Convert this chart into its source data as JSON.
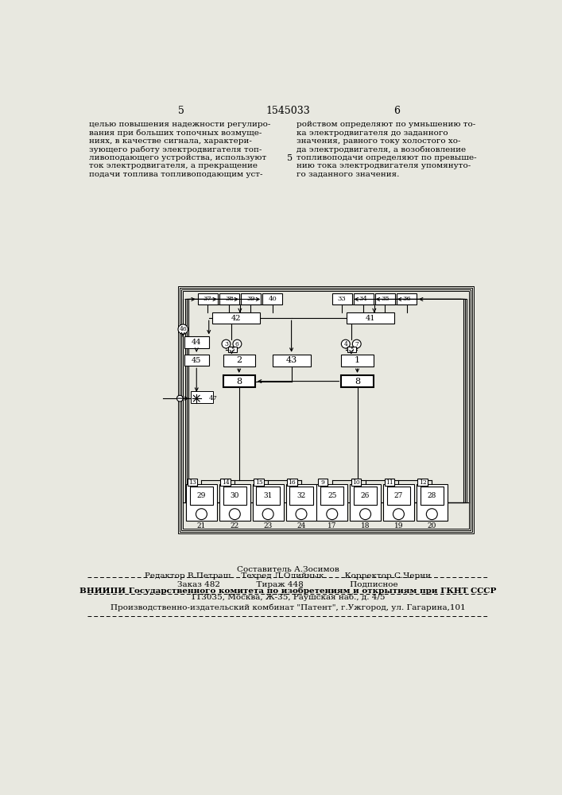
{
  "bg_color": "#e8e8e0",
  "page_left": "5",
  "page_center": "1545033",
  "page_right": "6",
  "col_left": "целью повышения надежности регулиро-\nвания при больших топочных возмуще-\nниях, в качестве сигнала, характери-\nзующего работу электродвигателя топ-\nливоподающего устройства, используют\nток электродвигателя, а прекращение\nподачи топлива топливоподающим уст-",
  "col_right": "ройством определяют по умньшению то-\nка электродвигателя до заданного\nзначения, равного току холостого хо-\nда электродвигателя, а возобновление\nтопливоподачи определяют по превыше-\nнию тока электродвигателя упомянуто-\nго заданного значения.",
  "sestavitel": "Составитель А.Зосимов",
  "editor_row": "Редактор В.Петраш    Техред Л.Олийнык        Корректор С.Черни",
  "order_row": "Заказ 482              Тираж 448                  Подписное",
  "vnipi_row": "ВНИИПИ Государственного комитета по изобретениям и открытиям при ГКНТ СССР",
  "addr_row": "113035, Москва, Ж-35, Раушская наб., д. 4/5",
  "pub_row": "Производственно-издательский комбинат \"Патент\", г.Ужгород, ул. Гагарина,101"
}
